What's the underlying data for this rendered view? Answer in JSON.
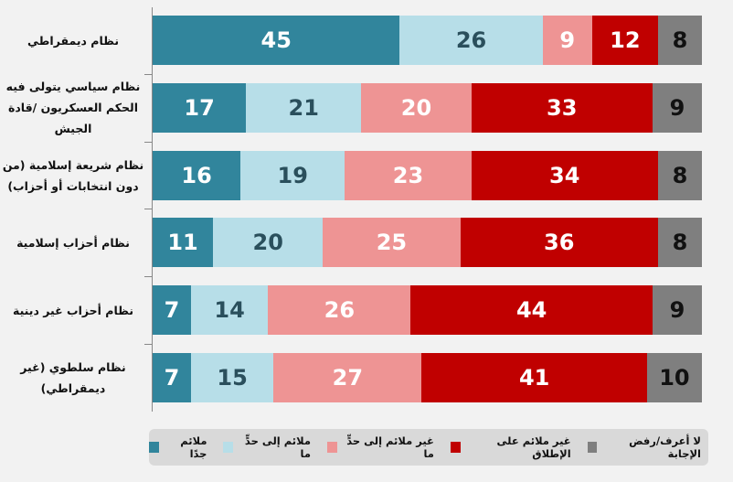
{
  "chart_data": {
    "type": "bar",
    "orientation": "horizontal",
    "stacked": true,
    "xlim": [
      0,
      100
    ],
    "categories": [
      "نظام ديمقراطي",
      "نظام سياسي يتولى فيه الحكم العسكريون /قادة الجيش",
      "نظام شريعة إسلامية (من دون انتخابات أو أحزاب)",
      "نظام أحزاب إسلامية",
      "نظام أحزاب غير دينية",
      "نظام سلطوي (غير ديمقراطي)"
    ],
    "series": [
      {
        "name": "ملائم جدًا",
        "color": "#31859c",
        "text_color": "#ffffff",
        "values": [
          45,
          17,
          16,
          11,
          7,
          7
        ]
      },
      {
        "name": "ملائم إلى حدٍّ ما",
        "color": "#b7dee8",
        "text_color": "#2a4f5c",
        "values": [
          26,
          21,
          19,
          20,
          14,
          15
        ]
      },
      {
        "name": "غير ملائم إلى حدٍّ ما",
        "color": "#ee9494",
        "text_color": "#ffffff",
        "values": [
          9,
          20,
          23,
          25,
          26,
          27
        ]
      },
      {
        "name": "غير ملائم على الإطلاق",
        "color": "#c00000",
        "text_color": "#ffffff",
        "values": [
          12,
          33,
          34,
          36,
          44,
          41
        ]
      },
      {
        "name": "لا أعرف/رفض الإجابة",
        "color": "#7f7f7f",
        "text_color": "#111111",
        "values": [
          8,
          9,
          8,
          8,
          9,
          10
        ]
      }
    ],
    "legend_position": "bottom",
    "legend_order": [
      4,
      3,
      2,
      1,
      0
    ]
  }
}
